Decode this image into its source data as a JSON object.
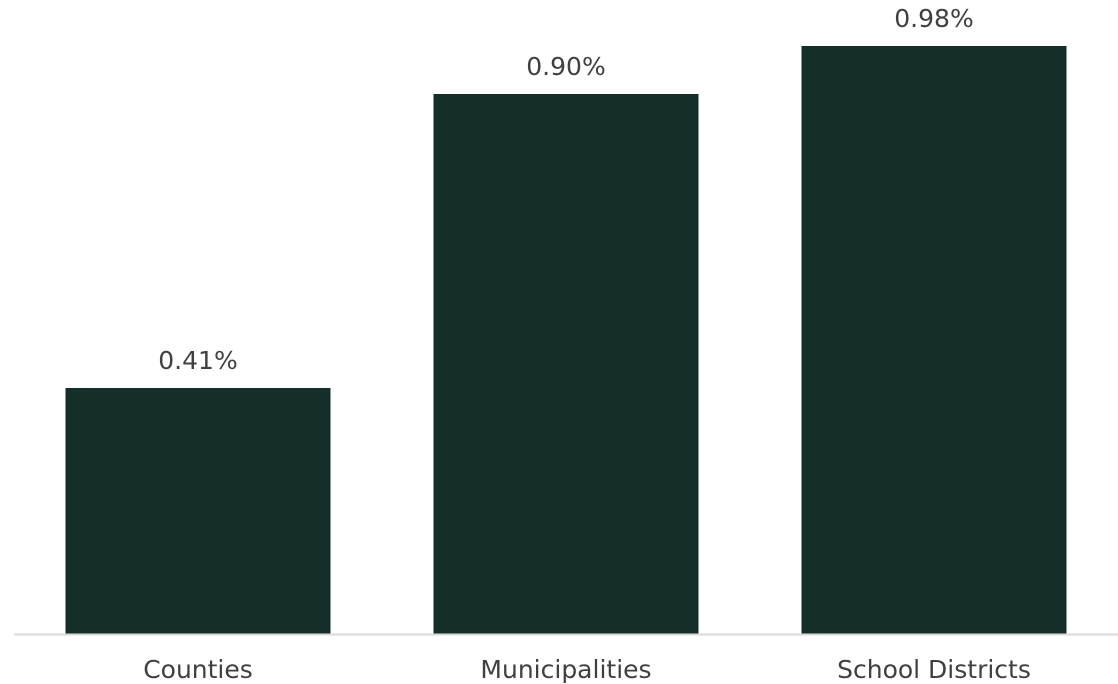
{
  "chart_data": {
    "type": "bar",
    "categories": [
      "Counties",
      "Municipalities",
      "School Districts"
    ],
    "values": [
      0.41,
      0.9,
      0.98
    ],
    "data_labels": [
      "0.41%",
      "0.90%",
      "0.98%"
    ],
    "unit": "%",
    "title": "",
    "xlabel": "",
    "ylabel": "",
    "ylim": [
      0,
      1.0
    ],
    "grid": false,
    "legend": "none",
    "bar_color": "#162e29",
    "axis_color": "#d9d9d9",
    "label_color": "#404040"
  }
}
